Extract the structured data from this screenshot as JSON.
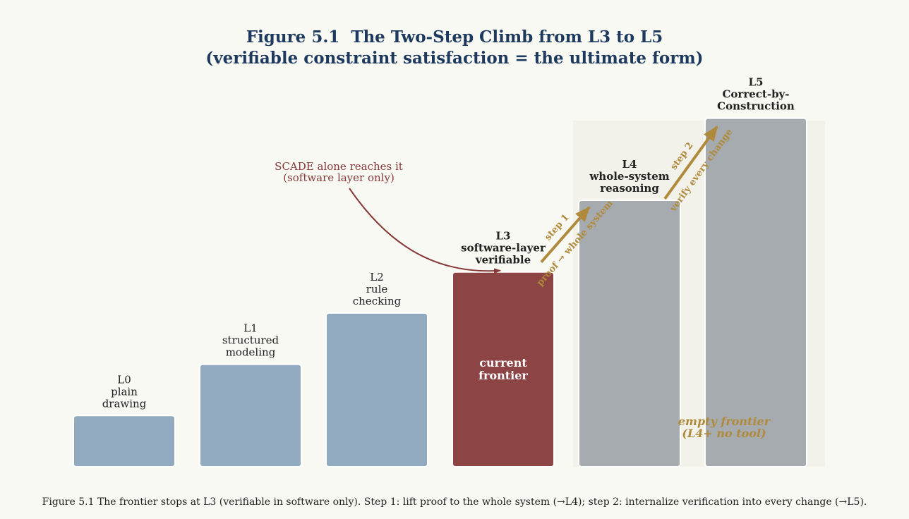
{
  "title_lines": [
    "Figure 5.1  The Two-Step Climb from L3 to L5",
    "(verifiable constraint satisfaction = the ultimate form)"
  ],
  "caption": "Figure 5.1  The frontier stops at L3 (verifiable in software only). Step 1: lift proof to the whole system (→L4); step 2: internalize verification into every change (→L5).",
  "colors": {
    "title": "#1d3a5e",
    "blue_bar": "#91aabf",
    "current_bar": "#8c4444",
    "future_bar": "#a6abaf",
    "gold": "#b08a3c",
    "annotation_red": "#863838",
    "shaded_region": "#f2f2ea",
    "text_dark": "#222222"
  },
  "chart_data": {
    "type": "bar",
    "categories": [
      "L0",
      "L1",
      "L2",
      "L3",
      "L4",
      "L5"
    ],
    "values": [
      1,
      2,
      3,
      3.8,
      5.2,
      6.8
    ],
    "ylim": [
      0,
      7.4
    ],
    "grid": false,
    "bar_labels": [
      [
        "L0",
        "plain",
        "drawing"
      ],
      [
        "L1",
        "structured",
        "modeling"
      ],
      [
        "L2",
        "rule",
        "checking"
      ],
      [
        "L3",
        "software-layer",
        "verifiable"
      ],
      [
        "L4",
        "whole-system",
        "reasoning"
      ],
      [
        "L5",
        "Correct-by-",
        "Construction"
      ]
    ],
    "bar_label_bold": [
      false,
      false,
      false,
      true,
      true,
      true
    ],
    "bar_style": [
      "done",
      "done",
      "done",
      "current",
      "future",
      "future"
    ],
    "inner_label": [
      "current",
      "frontier"
    ],
    "annotations": {
      "scade": [
        "SCADE alone reaches it",
        "(software layer only)"
      ],
      "step1": [
        "step 1",
        "proof → whole system"
      ],
      "step2": [
        "step 2",
        "verify every change"
      ],
      "empty_frontier": [
        "empty frontier",
        "(L4+ no tool)"
      ]
    }
  }
}
